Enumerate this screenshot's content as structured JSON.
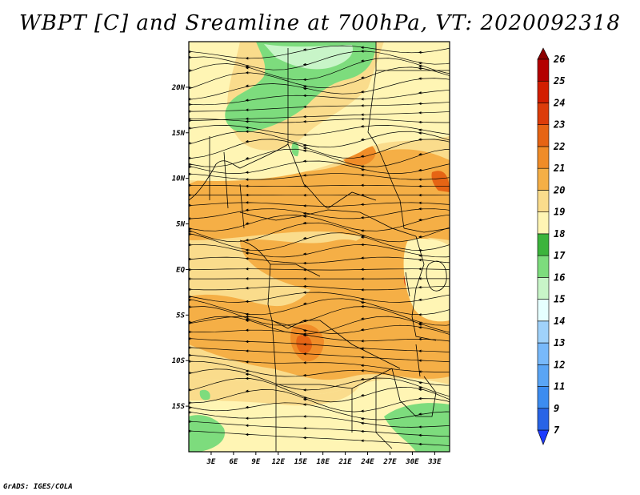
{
  "title": "WBPT [C] and Sreamline at 700hPa, VT: 2020092318",
  "credit": "GrADS: IGES/COLA",
  "map": {
    "lon_range": [
      0,
      35
    ],
    "lat_range": [
      -20,
      25
    ],
    "lon_ticks": [
      3,
      6,
      9,
      12,
      15,
      18,
      21,
      24,
      27,
      30,
      33
    ],
    "lon_tick_labels": [
      "3E",
      "6E",
      "9E",
      "12E",
      "15E",
      "18E",
      "21E",
      "24E",
      "27E",
      "30E",
      "33E"
    ],
    "lat_ticks": [
      20,
      15,
      10,
      5,
      0,
      -5,
      -10,
      -15
    ],
    "lat_tick_labels": [
      "20N",
      "15N",
      "10N",
      "5N",
      "EQ",
      "5S",
      "10S",
      "15S"
    ],
    "field": "Wet-bulb potential temperature (C) with streamlines at 700 hPa",
    "prevailing_flow": "easterly"
  },
  "colorbar": {
    "levels": [
      "7",
      "9",
      "11",
      "12",
      "13",
      "14",
      "15",
      "16",
      "17",
      "18",
      "19",
      "20",
      "21",
      "22",
      "23",
      "24",
      "25",
      "26"
    ],
    "colors": [
      "#1e3cff",
      "#2864e6",
      "#3c8cf0",
      "#5aa5f5",
      "#78b9fa",
      "#a0d2fa",
      "#e6ffff",
      "#c8f5c8",
      "#7ddc7d",
      "#3cb43c",
      "#fff5b4",
      "#fadc8c",
      "#f5af46",
      "#f08c28",
      "#e66414",
      "#dc3c0a",
      "#d21e00",
      "#b40000",
      "#8c0000"
    ]
  }
}
